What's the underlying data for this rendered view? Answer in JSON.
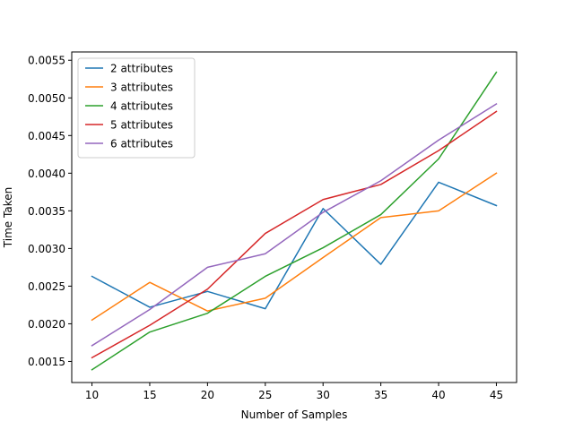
{
  "chart_data": {
    "type": "line",
    "title": "",
    "xlabel": "Number of Samples",
    "ylabel": "Time Taken",
    "x": [
      10,
      15,
      20,
      25,
      30,
      35,
      40,
      45
    ],
    "xlim": [
      8.25,
      46.75
    ],
    "ylim": [
      0.00122,
      0.00561
    ],
    "xticks": [
      10,
      15,
      20,
      25,
      30,
      35,
      40,
      45
    ],
    "yticks": [
      0.0015,
      0.002,
      0.0025,
      0.003,
      0.0035,
      0.004,
      0.0045,
      0.005,
      0.0055
    ],
    "ytick_labels": [
      "0.0015",
      "0.0020",
      "0.0025",
      "0.0030",
      "0.0035",
      "0.0040",
      "0.0045",
      "0.0050",
      "0.0055"
    ],
    "grid": false,
    "legend_position": "top-left",
    "series": [
      {
        "name": "2 attributes",
        "color": "#1f77b4",
        "values": [
          0.00263,
          0.00222,
          0.00243,
          0.0022,
          0.00353,
          0.00279,
          0.00388,
          0.00357
        ]
      },
      {
        "name": "3 attributes",
        "color": "#ff7f0e",
        "values": [
          0.00205,
          0.00255,
          0.00217,
          0.00234,
          0.00288,
          0.00341,
          0.0035,
          0.004
        ]
      },
      {
        "name": "4 attributes",
        "color": "#2ca02c",
        "values": [
          0.00139,
          0.00189,
          0.00214,
          0.00263,
          0.00301,
          0.00345,
          0.00419,
          0.00534
        ]
      },
      {
        "name": "5 attributes",
        "color": "#d62728",
        "values": [
          0.00155,
          0.00198,
          0.00246,
          0.0032,
          0.00365,
          0.00385,
          0.0043,
          0.00482
        ]
      },
      {
        "name": "6 attributes",
        "color": "#9467bd",
        "values": [
          0.00171,
          0.00219,
          0.00275,
          0.00293,
          0.00348,
          0.0039,
          0.00444,
          0.00492
        ]
      }
    ]
  }
}
